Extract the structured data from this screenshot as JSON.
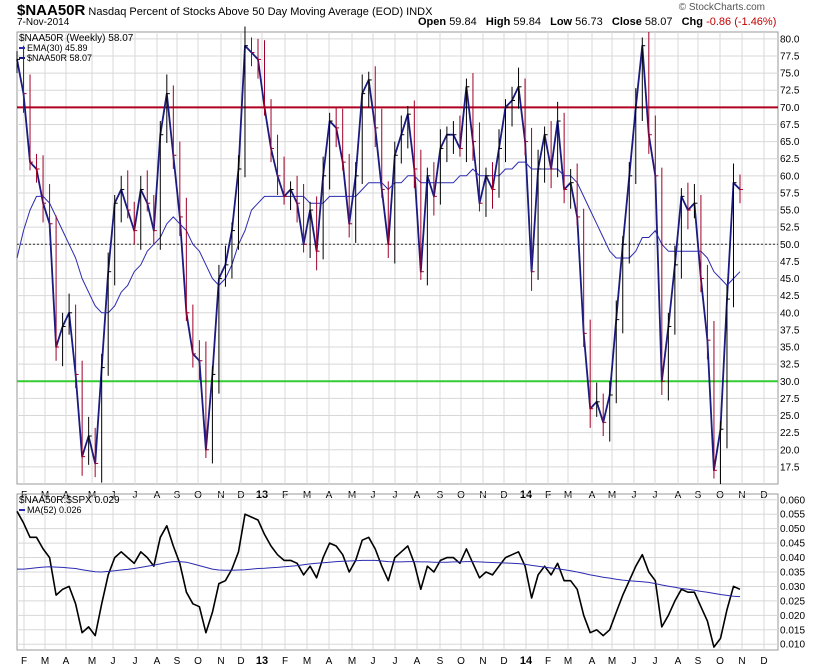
{
  "header": {
    "symbol": "$NAA50R",
    "description": "Nasdaq Percent of Stocks Above 50 Day Moving Average (EOD)",
    "exchange": "INDX",
    "date": "7-Nov-2014",
    "brand": "© StockCharts.com",
    "open_label": "Open",
    "open_value": "59.84",
    "high_label": "High",
    "high_value": "59.84",
    "low_label": "Low",
    "low_value": "56.73",
    "close_label": "Close",
    "close_value": "58.07",
    "chg_label": "Chg",
    "chg_value": "-0.86 (-1.46%)"
  },
  "colors": {
    "price_line": "#1a1a80",
    "ema_line": "#2b2bb0",
    "bar_down": "#a00028",
    "upper_line": "#b00020",
    "lower_line": "#33cc33",
    "grid": "#d8d8d8",
    "ratio_line": "#000000",
    "ratio_ma": "#2b2bb0"
  },
  "chart_data": [
    {
      "type": "line",
      "title": "$NAA50R (Weekly) 58.07",
      "legend": [
        {
          "key": "ema",
          "label": "EMA(30) 45.89"
        },
        {
          "key": "price",
          "label": "$NAA50R 58.07"
        }
      ],
      "ylim": [
        15,
        81
      ],
      "yticks": [
        "17.5",
        "20.0",
        "22.5",
        "25.0",
        "27.5",
        "30.0",
        "32.5",
        "35.0",
        "37.5",
        "40.0",
        "42.5",
        "45.0",
        "47.5",
        "50.0",
        "52.5",
        "55.0",
        "57.5",
        "60.0",
        "62.5",
        "65.0",
        "67.5",
        "70.0",
        "72.5",
        "75.0",
        "77.5",
        "80.0"
      ],
      "reference_lines": [
        {
          "value": 70,
          "role": "upper"
        },
        {
          "value": 50,
          "role": "mid"
        },
        {
          "value": 30,
          "role": "lower"
        }
      ],
      "xlabels": [
        "F",
        "M",
        "A",
        "M",
        "J",
        "J",
        "A",
        "S",
        "O",
        "N",
        "D",
        "13",
        "F",
        "M",
        "A",
        "M",
        "J",
        "J",
        "A",
        "S",
        "O",
        "N",
        "D",
        "14",
        "F",
        "M",
        "A",
        "M",
        "J",
        "J",
        "A",
        "S",
        "O",
        "N",
        "D"
      ],
      "series": [
        {
          "name": "$NAA50R",
          "values": [
            77,
            72,
            62,
            61,
            56,
            53,
            35,
            38,
            40,
            31,
            19,
            22,
            18,
            32,
            46,
            56,
            58,
            55,
            52,
            58,
            56,
            52,
            66,
            72,
            63,
            54,
            40,
            34,
            33,
            20,
            31,
            45,
            47,
            52,
            61,
            79,
            78,
            77,
            70,
            64,
            60,
            57,
            58,
            56,
            50,
            55,
            49,
            60,
            68,
            67,
            62,
            53,
            60,
            72,
            74,
            67,
            58,
            50,
            63,
            66,
            69,
            61,
            46,
            60,
            57,
            64,
            66,
            66,
            64,
            73,
            65,
            56,
            60,
            58,
            64,
            70,
            71,
            73,
            65,
            46,
            61,
            66,
            61,
            68,
            58,
            59,
            54,
            37,
            26,
            27,
            24,
            28,
            39,
            50,
            60,
            70,
            79,
            66,
            60,
            30,
            38,
            47,
            57,
            55,
            56,
            45,
            36,
            17,
            23,
            42,
            59,
            58
          ]
        },
        {
          "name": "EMA(30)",
          "values": [
            48,
            52,
            55,
            57,
            57,
            56,
            54,
            52,
            50,
            48,
            45,
            43,
            41,
            40,
            40,
            41,
            43,
            44,
            46,
            47,
            49,
            50,
            51,
            53,
            54,
            53,
            52,
            50,
            49,
            47,
            45,
            44,
            45,
            47,
            50,
            52,
            55,
            56,
            57,
            57,
            57,
            57,
            57,
            57,
            57,
            56,
            56,
            56,
            57,
            57,
            57,
            57,
            57,
            58,
            59,
            59,
            59,
            58,
            59,
            59,
            60,
            60,
            59,
            59,
            59,
            59,
            59,
            59,
            60,
            60,
            61,
            60,
            60,
            60,
            60,
            61,
            61,
            62,
            62,
            61,
            61,
            61,
            61,
            61,
            60,
            60,
            59,
            57,
            55,
            53,
            51,
            49,
            48,
            48,
            48,
            49,
            51,
            51,
            52,
            50,
            49,
            49,
            49,
            49,
            49,
            49,
            48,
            46,
            45,
            44,
            45,
            46
          ]
        }
      ]
    },
    {
      "type": "line",
      "title": "$NAA50R:$SPX 0.029",
      "legend": [
        {
          "key": "ratio",
          "label": "$NAA50R:$SPX 0.029"
        },
        {
          "key": "ma",
          "label": "MA(52) 0.026"
        }
      ],
      "ylim": [
        0.008,
        0.062
      ],
      "yticks": [
        "0.010",
        "0.015",
        "0.020",
        "0.025",
        "0.030",
        "0.035",
        "0.040",
        "0.045",
        "0.050",
        "0.055",
        "0.060"
      ],
      "xlabels": [
        "F",
        "M",
        "A",
        "M",
        "J",
        "J",
        "A",
        "S",
        "O",
        "N",
        "D",
        "13",
        "F",
        "M",
        "A",
        "M",
        "J",
        "J",
        "A",
        "S",
        "O",
        "N",
        "D",
        "14",
        "F",
        "M",
        "A",
        "M",
        "J",
        "J",
        "A",
        "S",
        "O",
        "N",
        "D"
      ],
      "series": [
        {
          "name": "$NAA50R:$SPX",
          "values": [
            0.056,
            0.052,
            0.047,
            0.047,
            0.043,
            0.04,
            0.027,
            0.029,
            0.03,
            0.024,
            0.014,
            0.016,
            0.013,
            0.024,
            0.034,
            0.04,
            0.042,
            0.04,
            0.038,
            0.042,
            0.04,
            0.037,
            0.047,
            0.051,
            0.044,
            0.038,
            0.028,
            0.024,
            0.023,
            0.014,
            0.021,
            0.031,
            0.032,
            0.036,
            0.042,
            0.055,
            0.054,
            0.053,
            0.048,
            0.044,
            0.041,
            0.039,
            0.039,
            0.038,
            0.034,
            0.037,
            0.033,
            0.04,
            0.045,
            0.044,
            0.041,
            0.035,
            0.039,
            0.046,
            0.047,
            0.043,
            0.037,
            0.032,
            0.04,
            0.042,
            0.044,
            0.038,
            0.029,
            0.037,
            0.035,
            0.039,
            0.04,
            0.04,
            0.038,
            0.043,
            0.038,
            0.033,
            0.035,
            0.034,
            0.037,
            0.04,
            0.041,
            0.042,
            0.037,
            0.026,
            0.034,
            0.037,
            0.034,
            0.038,
            0.032,
            0.032,
            0.029,
            0.02,
            0.014,
            0.015,
            0.013,
            0.015,
            0.021,
            0.027,
            0.032,
            0.037,
            0.041,
            0.035,
            0.032,
            0.016,
            0.02,
            0.025,
            0.029,
            0.028,
            0.028,
            0.023,
            0.018,
            0.009,
            0.012,
            0.022,
            0.03,
            0.029
          ]
        },
        {
          "name": "MA(52)",
          "values": [
            0.036,
            0.036,
            0.0362,
            0.0365,
            0.0367,
            0.0368,
            0.0367,
            0.0366,
            0.0364,
            0.0362,
            0.0358,
            0.0354,
            0.0351,
            0.035,
            0.0352,
            0.0354,
            0.0357,
            0.0359,
            0.0362,
            0.0366,
            0.037,
            0.0374,
            0.0378,
            0.0383,
            0.0386,
            0.0386,
            0.0384,
            0.0378,
            0.0372,
            0.0366,
            0.036,
            0.0357,
            0.0356,
            0.0356,
            0.0357,
            0.0358,
            0.036,
            0.0362,
            0.0363,
            0.0365,
            0.0366,
            0.0368,
            0.037,
            0.0372,
            0.0375,
            0.0378,
            0.038,
            0.0382,
            0.0384,
            0.0386,
            0.0387,
            0.0388,
            0.0389,
            0.039,
            0.039,
            0.039,
            0.0388,
            0.0386,
            0.0385,
            0.0385,
            0.0386,
            0.0386,
            0.0385,
            0.0385,
            0.0384,
            0.0384,
            0.0384,
            0.0385,
            0.0385,
            0.0386,
            0.0386,
            0.0385,
            0.0384,
            0.0383,
            0.0382,
            0.0381,
            0.038,
            0.0379,
            0.0377,
            0.0373,
            0.037,
            0.0367,
            0.0364,
            0.0361,
            0.0358,
            0.0354,
            0.035,
            0.0345,
            0.034,
            0.0336,
            0.0332,
            0.0329,
            0.0325,
            0.0322,
            0.032,
            0.0318,
            0.0316,
            0.0314,
            0.031,
            0.0305,
            0.0301,
            0.0297,
            0.0293,
            0.029,
            0.0287,
            0.0283,
            0.028,
            0.0276,
            0.0272,
            0.0269,
            0.0266,
            0.0265
          ]
        }
      ]
    }
  ]
}
